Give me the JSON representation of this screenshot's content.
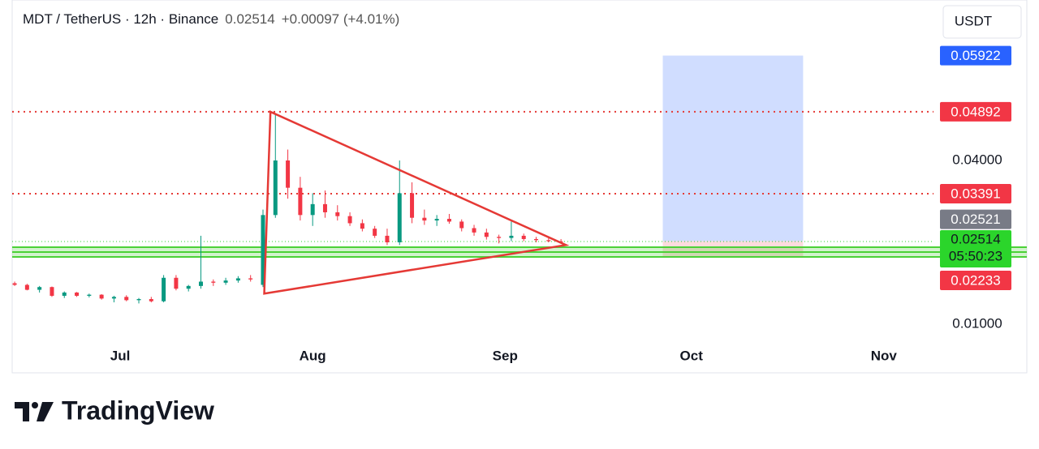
{
  "chart_data": {
    "type": "candlestick",
    "header": {
      "symbol": "MDT / TetherUS · 12h · Binance",
      "last": "0.02514",
      "change": "+0.00097 (+4.01%)"
    },
    "currency": "USDT",
    "brand": "TradingView",
    "xlim": [
      -17.4,
      131
    ],
    "xticks": [
      {
        "value": 0,
        "label": "Jul"
      },
      {
        "value": 31,
        "label": "Aug"
      },
      {
        "value": 62,
        "label": "Sep"
      },
      {
        "value": 92,
        "label": "Oct"
      },
      {
        "value": 123,
        "label": "Nov"
      }
    ],
    "ylim": [
      0.00584,
      0.06792
    ],
    "yticks": [
      {
        "value": 0.01,
        "label": "0.01000"
      },
      {
        "value": 0.04,
        "label": "0.04000"
      }
    ],
    "up_color": "#089981",
    "down_color": "#f23645",
    "x": [
      -17,
      -15,
      -13,
      -11,
      -9,
      -7,
      -5,
      -3,
      -1,
      1,
      3,
      5,
      7,
      9,
      11,
      13,
      15,
      17,
      19,
      21,
      23,
      25,
      27,
      29,
      31,
      33,
      35,
      37,
      39,
      41,
      43,
      45,
      47,
      49,
      51,
      53,
      55,
      57,
      59,
      61,
      63,
      65,
      67,
      69,
      71
    ],
    "open": [
      0.0175,
      0.0172,
      0.0163,
      0.0168,
      0.0152,
      0.0158,
      0.0152,
      0.0154,
      0.0147,
      0.015,
      0.0144,
      0.0146,
      0.0142,
      0.0185,
      0.0165,
      0.017,
      0.0178,
      0.0176,
      0.018,
      0.0184,
      0.0172,
      0.03,
      0.04,
      0.035,
      0.03,
      0.032,
      0.0305,
      0.0298,
      0.0285,
      0.0275,
      0.0262,
      0.025,
      0.034,
      0.0295,
      0.029,
      0.0293,
      0.0288,
      0.0276,
      0.0268,
      0.026,
      0.0258,
      0.0262,
      0.0256,
      0.0254,
      0.0252
    ],
    "high": [
      0.0178,
      0.0174,
      0.017,
      0.0169,
      0.016,
      0.0159,
      0.0156,
      0.0155,
      0.0152,
      0.0153,
      0.0148,
      0.015,
      0.019,
      0.019,
      0.0172,
      0.0262,
      0.0182,
      0.0185,
      0.0188,
      0.019,
      0.031,
      0.0486,
      0.042,
      0.037,
      0.034,
      0.0345,
      0.0318,
      0.0305,
      0.0292,
      0.028,
      0.0275,
      0.04,
      0.036,
      0.031,
      0.03,
      0.0302,
      0.0292,
      0.0282,
      0.0275,
      0.0264,
      0.0288,
      0.0266,
      0.026,
      0.0258,
      0.0256
    ],
    "low": [
      0.017,
      0.0162,
      0.0158,
      0.015,
      0.0148,
      0.015,
      0.0149,
      0.0145,
      0.014,
      0.0142,
      0.0138,
      0.014,
      0.014,
      0.0162,
      0.016,
      0.0165,
      0.017,
      0.0172,
      0.0176,
      0.0178,
      0.0168,
      0.0295,
      0.033,
      0.029,
      0.028,
      0.0295,
      0.029,
      0.028,
      0.027,
      0.0258,
      0.0245,
      0.0245,
      0.0285,
      0.0282,
      0.028,
      0.0284,
      0.027,
      0.0262,
      0.0255,
      0.0248,
      0.0252,
      0.0252,
      0.025,
      0.025,
      0.0249
    ],
    "close": [
      0.0172,
      0.0163,
      0.0168,
      0.0152,
      0.0158,
      0.0152,
      0.0154,
      0.0147,
      0.015,
      0.0144,
      0.0146,
      0.0142,
      0.0185,
      0.0165,
      0.017,
      0.0178,
      0.0176,
      0.018,
      0.0184,
      0.0182,
      0.03,
      0.04,
      0.035,
      0.03,
      0.032,
      0.0305,
      0.0298,
      0.0285,
      0.0275,
      0.0262,
      0.025,
      0.034,
      0.0295,
      0.029,
      0.0293,
      0.0288,
      0.0276,
      0.0268,
      0.026,
      0.0258,
      0.0262,
      0.0256,
      0.0254,
      0.0252,
      0.0251
    ],
    "horizontal_lines": [
      {
        "value": 0.04892,
        "color": "#e53935"
      },
      {
        "value": 0.03391,
        "color": "#e53935"
      }
    ],
    "triangle": {
      "x": [
        23.2,
        24.2,
        71.8
      ],
      "y": [
        0.0156,
        0.04892,
        0.0245
      ],
      "color": "#e53935"
    },
    "support_zone": {
      "ylim": [
        0.02233,
        0.0241
      ],
      "color": "#4cd137"
    },
    "position": {
      "x": [
        87.4,
        110
      ],
      "target": 0.05922,
      "entry": 0.02521,
      "stop": 0.02233
    },
    "price_labels": [
      {
        "value": 0.05922,
        "color": "#2962ff"
      },
      {
        "value": 0.04892,
        "color": "#f23645"
      },
      {
        "value": 0.03391,
        "color": "#f23645"
      },
      {
        "value": 0.02521,
        "color": "#787b86"
      },
      {
        "value": 0.02233,
        "color": "#f23645"
      }
    ],
    "last_price": {
      "value": 0.02514,
      "countdown": "05:50:23",
      "color": "#2bd52b"
    }
  }
}
